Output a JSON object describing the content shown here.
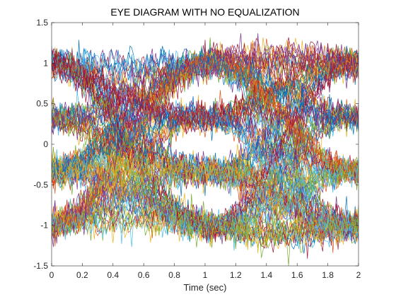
{
  "chart_data": {
    "type": "line",
    "title": "EYE DIAGRAM WITH NO EQUALIZATION",
    "xlabel": "Time (sec)",
    "ylabel": "",
    "xlim": [
      0,
      2
    ],
    "ylim": [
      -1.5,
      1.5
    ],
    "xticks": [
      0,
      0.2,
      0.4,
      0.6,
      0.8,
      1,
      1.2,
      1.4,
      1.6,
      1.8,
      2
    ],
    "xtick_labels": [
      "0",
      "0.2",
      "0.4",
      "0.6",
      "0.8",
      "1",
      "1.2",
      "1.4",
      "1.6",
      "1.8",
      "2"
    ],
    "yticks": [
      -1.5,
      -1,
      -0.5,
      0,
      0.5,
      1,
      1.5
    ],
    "ytick_labels": [
      "-1.5",
      "-1",
      "-0.5",
      "0",
      "0.5",
      "1",
      "1.5"
    ],
    "grid": false,
    "box": true,
    "series_colors": [
      "#0072bd",
      "#d95319",
      "#edb120",
      "#7e2f8e",
      "#77ac30",
      "#4dbeee",
      "#a2142f"
    ],
    "signal_levels": [
      -1,
      -0.333,
      0.333,
      1
    ],
    "symbol_transition_times": [
      0,
      1,
      2
    ],
    "noise_std": 0.09
  }
}
